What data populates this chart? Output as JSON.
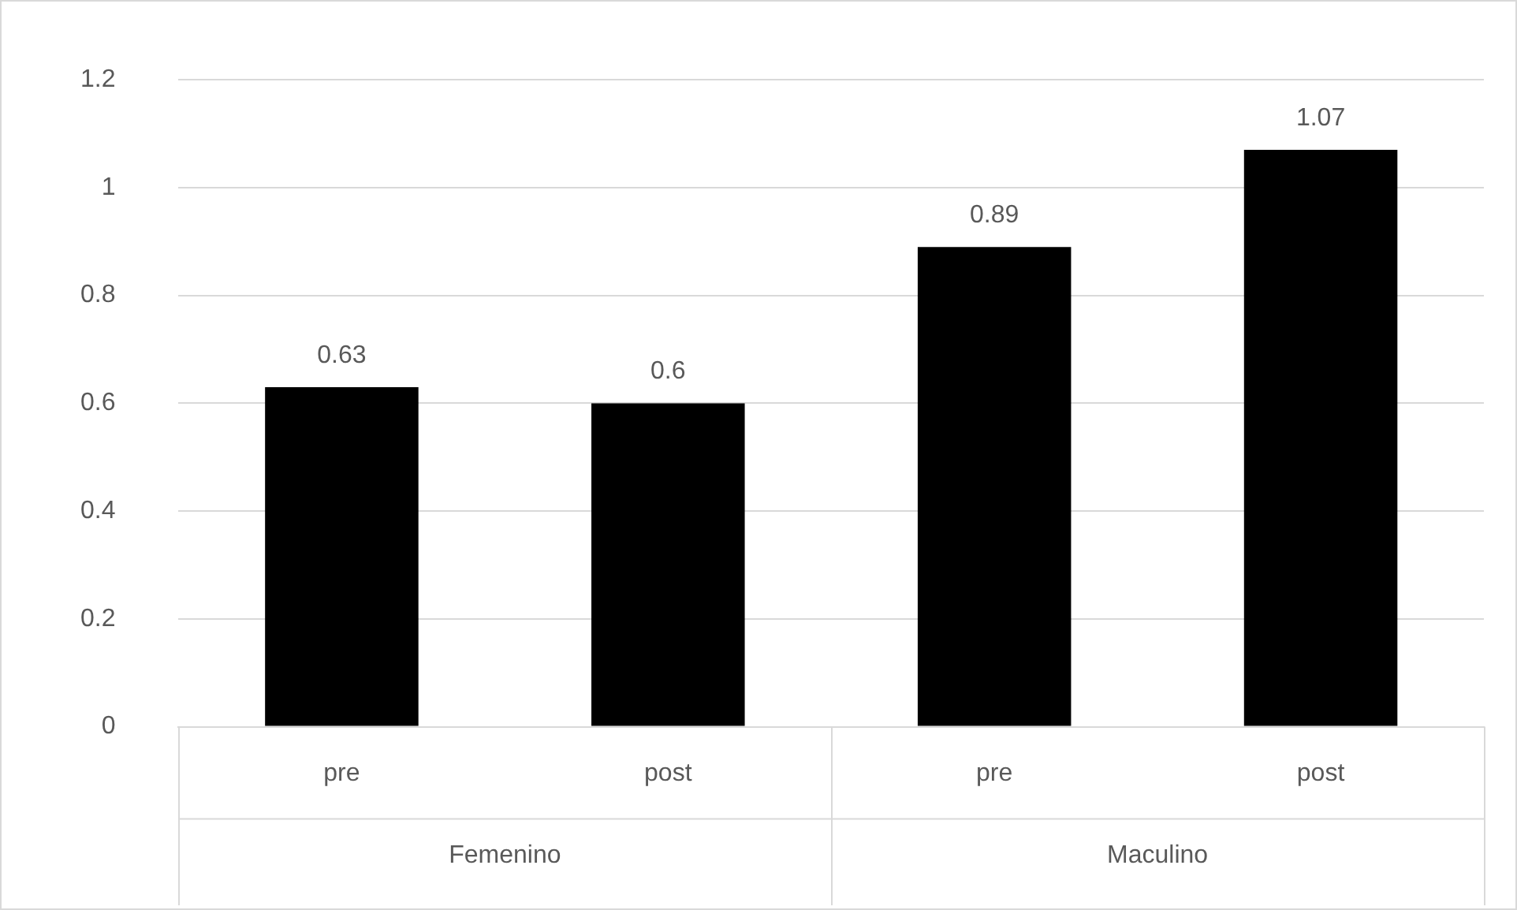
{
  "chart_data": {
    "type": "bar",
    "categories": [
      "pre",
      "post",
      "pre",
      "post"
    ],
    "values": [
      0.63,
      0.6,
      0.89,
      1.07
    ],
    "color": "#000000",
    "ylim": [
      0,
      1.2
    ],
    "yticks": [
      0,
      0.2,
      0.4,
      0.6,
      0.8,
      1,
      1.2
    ],
    "grid": "y",
    "legend": false,
    "data_labels": true,
    "annotations": [
      "Femenino",
      "Maculino"
    ]
  }
}
